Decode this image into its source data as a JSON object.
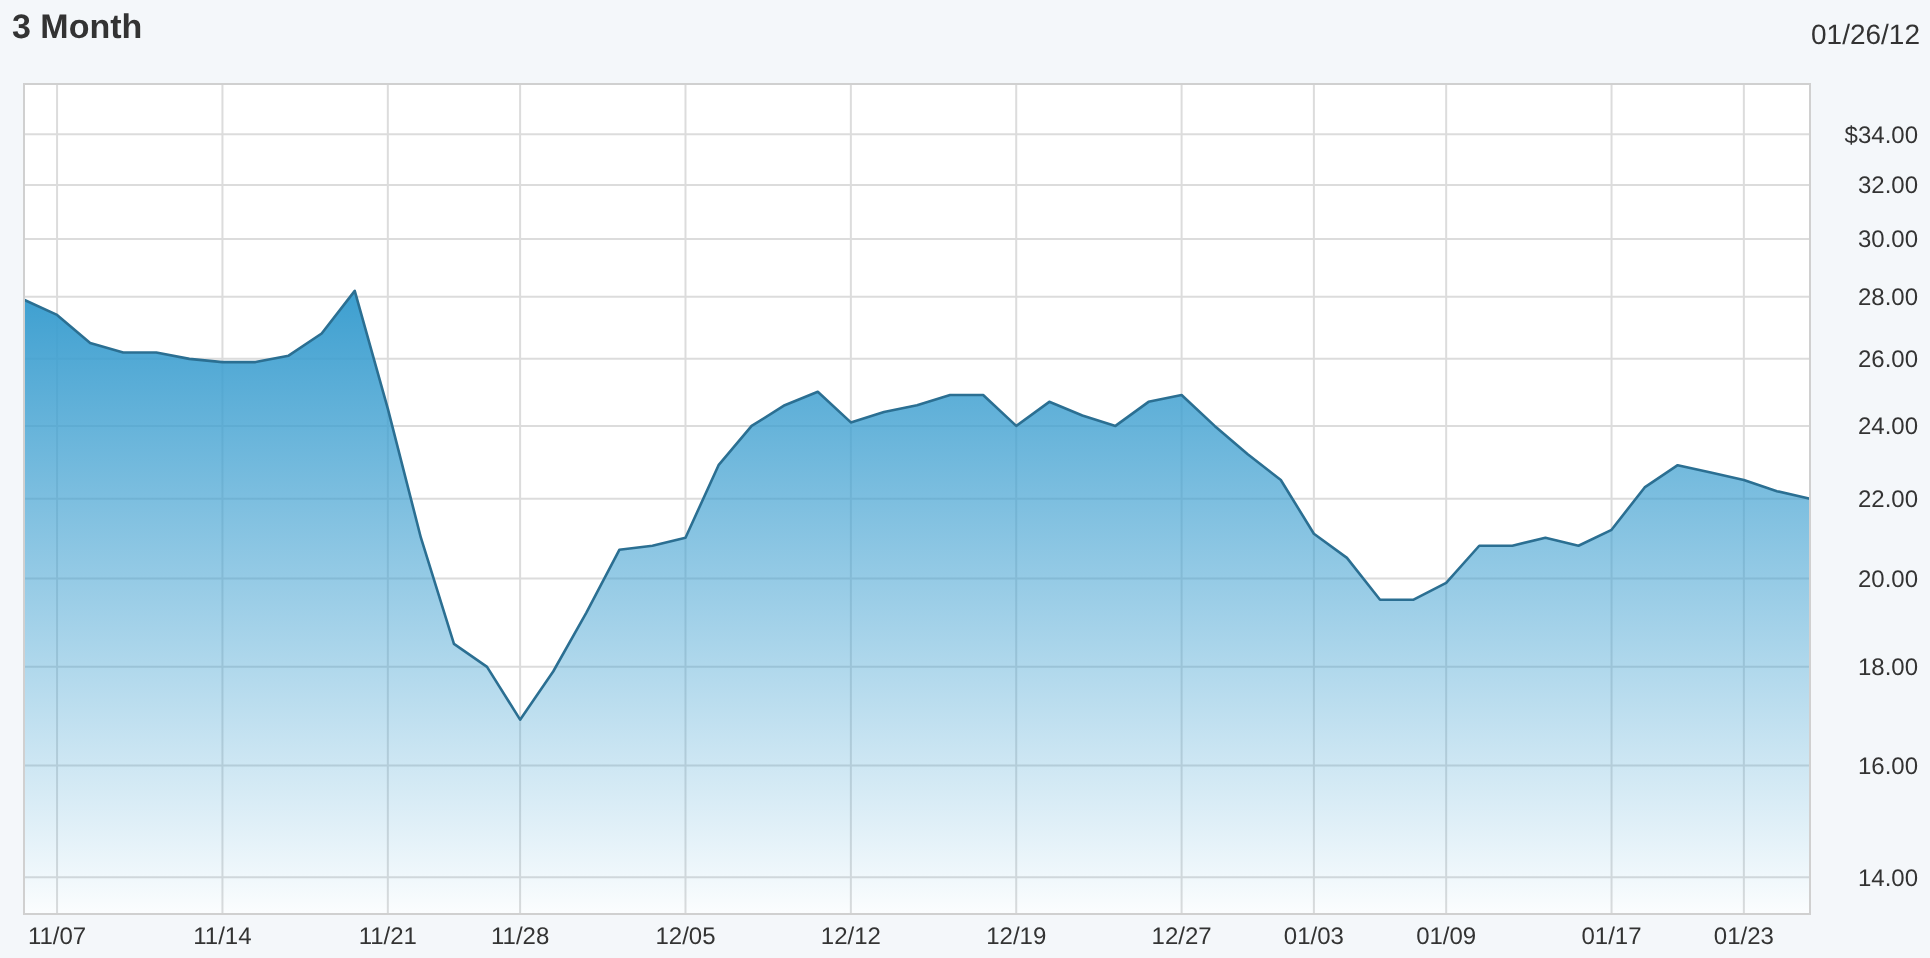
{
  "chart_data": {
    "type": "area",
    "title": "3 Month",
    "annotations": [
      "01/26/12"
    ],
    "categories": [
      null,
      "11/07",
      null,
      null,
      null,
      null,
      "11/14",
      null,
      null,
      null,
      null,
      "11/21",
      null,
      null,
      null,
      "11/28",
      null,
      null,
      null,
      null,
      "12/05",
      null,
      null,
      null,
      null,
      "12/12",
      null,
      null,
      null,
      null,
      "12/19",
      null,
      null,
      null,
      null,
      "12/27",
      null,
      null,
      null,
      "01/03",
      null,
      null,
      null,
      "01/09",
      null,
      null,
      null,
      null,
      "01/17",
      null,
      null,
      null,
      "01/23",
      null,
      null
    ],
    "series": [
      {
        "color": "#3d9fd0",
        "values": [
          27.9,
          27.4,
          26.5,
          26.2,
          26.2,
          26.0,
          25.9,
          25.9,
          26.1,
          26.8,
          28.2,
          24.5,
          21.0,
          18.5,
          18.0,
          16.9,
          17.9,
          19.2,
          20.7,
          20.8,
          21.0,
          22.9,
          24.0,
          24.6,
          25.0,
          24.1,
          24.4,
          24.6,
          24.9,
          24.9,
          24.0,
          24.7,
          24.3,
          24.0,
          24.7,
          24.9,
          24.0,
          23.2,
          22.5,
          21.1,
          20.5,
          19.5,
          19.5,
          19.9,
          20.8,
          20.8,
          21.0,
          20.8,
          21.2,
          22.3,
          22.9,
          22.7,
          22.5,
          22.2,
          22.0
        ]
      }
    ],
    "ylim": [
      13.4,
      36.1
    ],
    "log": true,
    "yticks": [
      {
        "value": 34,
        "label": "$34.00"
      },
      {
        "value": 32,
        "label": "32.00"
      },
      {
        "value": 30,
        "label": "30.00"
      },
      {
        "value": 28,
        "label": "28.00"
      },
      {
        "value": 26,
        "label": "26.00"
      },
      {
        "value": 24,
        "label": "24.00"
      },
      {
        "value": 22,
        "label": "22.00"
      },
      {
        "value": 20,
        "label": "20.00"
      },
      {
        "value": 18,
        "label": "18.00"
      },
      {
        "value": 16,
        "label": "16.00"
      },
      {
        "value": 14,
        "label": "14.00"
      }
    ],
    "grid": true
  }
}
